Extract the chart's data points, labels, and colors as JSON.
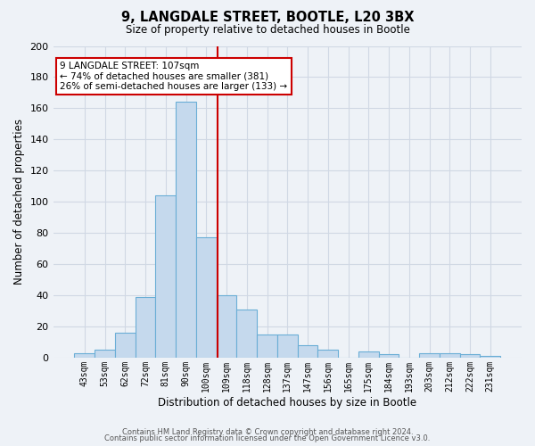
{
  "title": "9, LANGDALE STREET, BOOTLE, L20 3BX",
  "subtitle": "Size of property relative to detached houses in Bootle",
  "xlabel": "Distribution of detached houses by size in Bootle",
  "ylabel": "Number of detached properties",
  "bar_labels": [
    "43sqm",
    "53sqm",
    "62sqm",
    "72sqm",
    "81sqm",
    "90sqm",
    "100sqm",
    "109sqm",
    "118sqm",
    "128sqm",
    "137sqm",
    "147sqm",
    "156sqm",
    "165sqm",
    "175sqm",
    "184sqm",
    "193sqm",
    "203sqm",
    "212sqm",
    "222sqm",
    "231sqm"
  ],
  "bar_values": [
    3,
    5,
    16,
    39,
    104,
    164,
    77,
    40,
    31,
    15,
    15,
    8,
    5,
    0,
    4,
    2,
    0,
    3,
    3,
    2,
    1
  ],
  "bar_color": "#c5d9ed",
  "bar_edge_color": "#6aaed6",
  "vline_x_index": 6.57,
  "vline_color": "#cc0000",
  "annotation_title": "9 LANGDALE STREET: 107sqm",
  "annotation_line1": "← 74% of detached houses are smaller (381)",
  "annotation_line2": "26% of semi-detached houses are larger (133) →",
  "annotation_box_color": "#ffffff",
  "annotation_box_edge_color": "#cc0000",
  "ylim": [
    0,
    200
  ],
  "yticks": [
    0,
    20,
    40,
    60,
    80,
    100,
    120,
    140,
    160,
    180,
    200
  ],
  "footer1": "Contains HM Land Registry data © Crown copyright and database right 2024.",
  "footer2": "Contains public sector information licensed under the Open Government Licence v3.0.",
  "bg_color": "#eef2f7",
  "plot_bg_color": "#eef2f7",
  "grid_color": "#d0d8e4"
}
